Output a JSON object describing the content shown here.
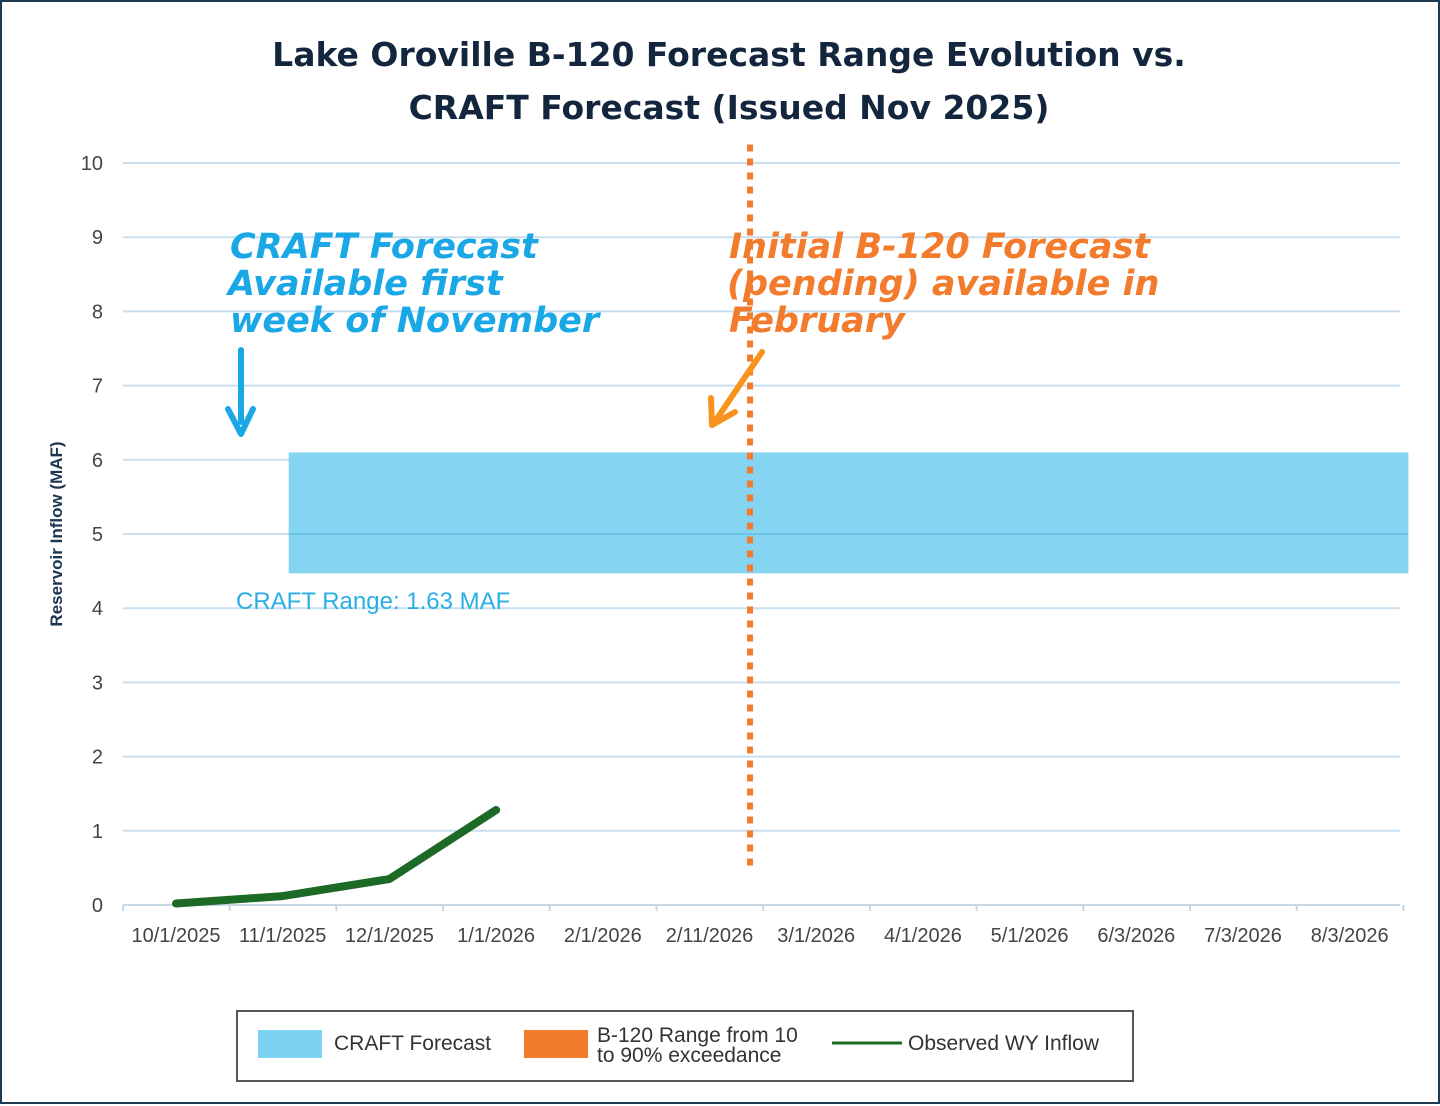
{
  "colors": {
    "craft_band": "#7ed2f1",
    "b120_marker": "#f27b2c",
    "observed_line": "#1c6a25",
    "gridline": "#c9dff0",
    "annotation_blue": "#1aa7e6",
    "annotation_orange": "#f27b2c",
    "title": "#14263d",
    "arrow_blue": "#1aa7e6",
    "arrow_orange": "#f8931d"
  },
  "chart_data": {
    "type": "line",
    "title": "Lake Oroville B-120 Forecast Range Evolution vs. CRAFT Forecast (Issued Nov 2025)",
    "title_lines": [
      "Lake Oroville B-120 Forecast Range Evolution vs.",
      "CRAFT Forecast (Issued Nov 2025)"
    ],
    "xlabel": "",
    "ylabel": "Reservoir Inflow (MAF)",
    "ylim": [
      0,
      10
    ],
    "yticks": [
      "0",
      "1",
      "2",
      "3",
      "4",
      "5",
      "6",
      "7",
      "8",
      "9",
      "10"
    ],
    "categories": [
      "10/1/2025",
      "11/1/2025",
      "12/1/2025",
      "1/1/2026",
      "2/1/2026",
      "2/11/2026",
      "3/1/2026",
      "4/1/2026",
      "5/1/2026",
      "6/3/2026",
      "7/3/2026",
      "8/3/2026"
    ],
    "grid": true,
    "series": [
      {
        "name": "Observed WY Inflow",
        "kind": "line",
        "points": [
          {
            "x": 0,
            "y": 0.02
          },
          {
            "x": 1,
            "y": 0.12
          },
          {
            "x": 2,
            "y": 0.35
          },
          {
            "x": 3,
            "y": 1.28
          }
        ]
      },
      {
        "name": "CRAFT Forecast",
        "kind": "band",
        "x_start": 1,
        "x_end": 11.55,
        "y_low": 4.47,
        "y_high": 6.1,
        "range_label": "CRAFT Range: 1.63 MAF"
      },
      {
        "name": "B-120 Range from 10 to 90% exceedance",
        "kind": "marker",
        "x": 5.38,
        "y_low": 0.45,
        "y_high": 10.25
      }
    ],
    "annotations": [
      {
        "id": "craft",
        "lines": [
          "CRAFT Forecast",
          "Available first",
          "week of November"
        ]
      },
      {
        "id": "b120",
        "lines": [
          "Initial B-120 Forecast",
          "(pending) available in",
          "February"
        ]
      }
    ],
    "legend": {
      "position": "bottom",
      "items": [
        {
          "label_lines": [
            "CRAFT Forecast"
          ],
          "symbol": "patch-blue"
        },
        {
          "label_lines": [
            "B-120 Range from 10",
            "to 90% exceedance"
          ],
          "symbol": "patch-orange"
        },
        {
          "label_lines": [
            "Observed WY Inflow"
          ],
          "symbol": "line-green"
        }
      ]
    }
  }
}
